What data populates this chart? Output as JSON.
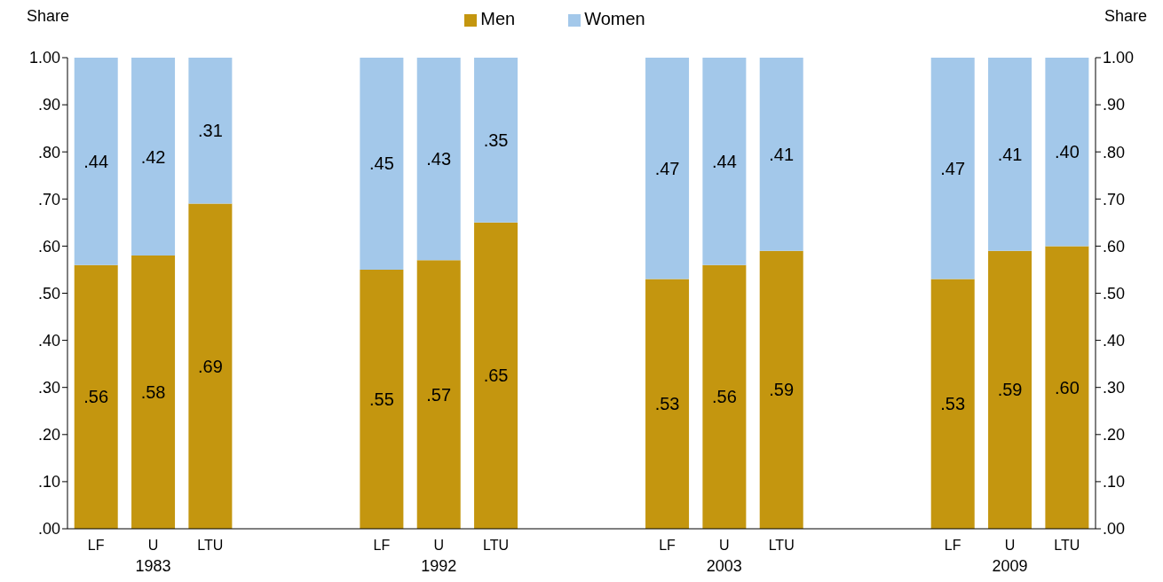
{
  "chart_data": {
    "type": "bar",
    "stacked": true,
    "ylabel": "Share",
    "y2label": "Share",
    "categories": [
      "LF",
      "U",
      "LTU",
      null,
      null,
      "LF",
      "U",
      "LTU",
      null,
      null,
      "LF",
      "U",
      "LTU",
      null,
      null,
      "LF",
      "U",
      "LTU"
    ],
    "annotations": [
      "1983",
      "1992",
      "2003",
      "2009"
    ],
    "series": [
      {
        "name": "Men",
        "color": "#c4960f",
        "values": [
          0.56,
          0.58,
          0.69,
          null,
          null,
          0.55,
          0.57,
          0.65,
          null,
          null,
          0.53,
          0.56,
          0.59,
          null,
          null,
          0.53,
          0.59,
          0.6
        ],
        "value_labels": [
          ".56",
          ".58",
          ".69",
          null,
          null,
          ".55",
          ".57",
          ".65",
          null,
          null,
          ".53",
          ".56",
          ".59",
          null,
          null,
          ".53",
          ".59",
          ".60"
        ]
      },
      {
        "name": "Women",
        "color": "#a3c8ea",
        "values": [
          0.44,
          0.42,
          0.31,
          null,
          null,
          0.45,
          0.43,
          0.35,
          null,
          null,
          0.47,
          0.44,
          0.41,
          null,
          null,
          0.47,
          0.41,
          0.4
        ],
        "value_labels": [
          ".44",
          ".42",
          ".31",
          null,
          null,
          ".45",
          ".43",
          ".35",
          null,
          null,
          ".47",
          ".44",
          ".41",
          null,
          null,
          ".47",
          ".41",
          ".40"
        ]
      }
    ],
    "ylim": [
      0,
      1
    ],
    "yticks": [
      {
        "value": 0,
        "label": ".00"
      },
      {
        "value": 0.1,
        "label": ".10"
      },
      {
        "value": 0.2,
        "label": ".20"
      },
      {
        "value": 0.3,
        "label": ".30"
      },
      {
        "value": 0.4,
        "label": ".40"
      },
      {
        "value": 0.5,
        "label": ".50"
      },
      {
        "value": 0.6,
        "label": ".60"
      },
      {
        "value": 0.7,
        "label": ".70"
      },
      {
        "value": 0.8,
        "label": ".80"
      },
      {
        "value": 0.9,
        "label": ".90"
      },
      {
        "value": 1,
        "label": "1.00"
      }
    ],
    "y2lim": [
      0,
      1
    ],
    "y2ticks": [
      {
        "value": 0,
        "label": ".00"
      },
      {
        "value": 0.1,
        "label": ".10"
      },
      {
        "value": 0.2,
        "label": ".20"
      },
      {
        "value": 0.3,
        "label": ".30"
      },
      {
        "value": 0.4,
        "label": ".40"
      },
      {
        "value": 0.5,
        "label": ".50"
      },
      {
        "value": 0.6,
        "label": ".60"
      },
      {
        "value": 0.7,
        "label": ".70"
      },
      {
        "value": 0.8,
        "label": ".80"
      },
      {
        "value": 0.9,
        "label": ".90"
      },
      {
        "value": 1,
        "label": "1.00"
      }
    ],
    "grid": false,
    "legend": "top"
  }
}
